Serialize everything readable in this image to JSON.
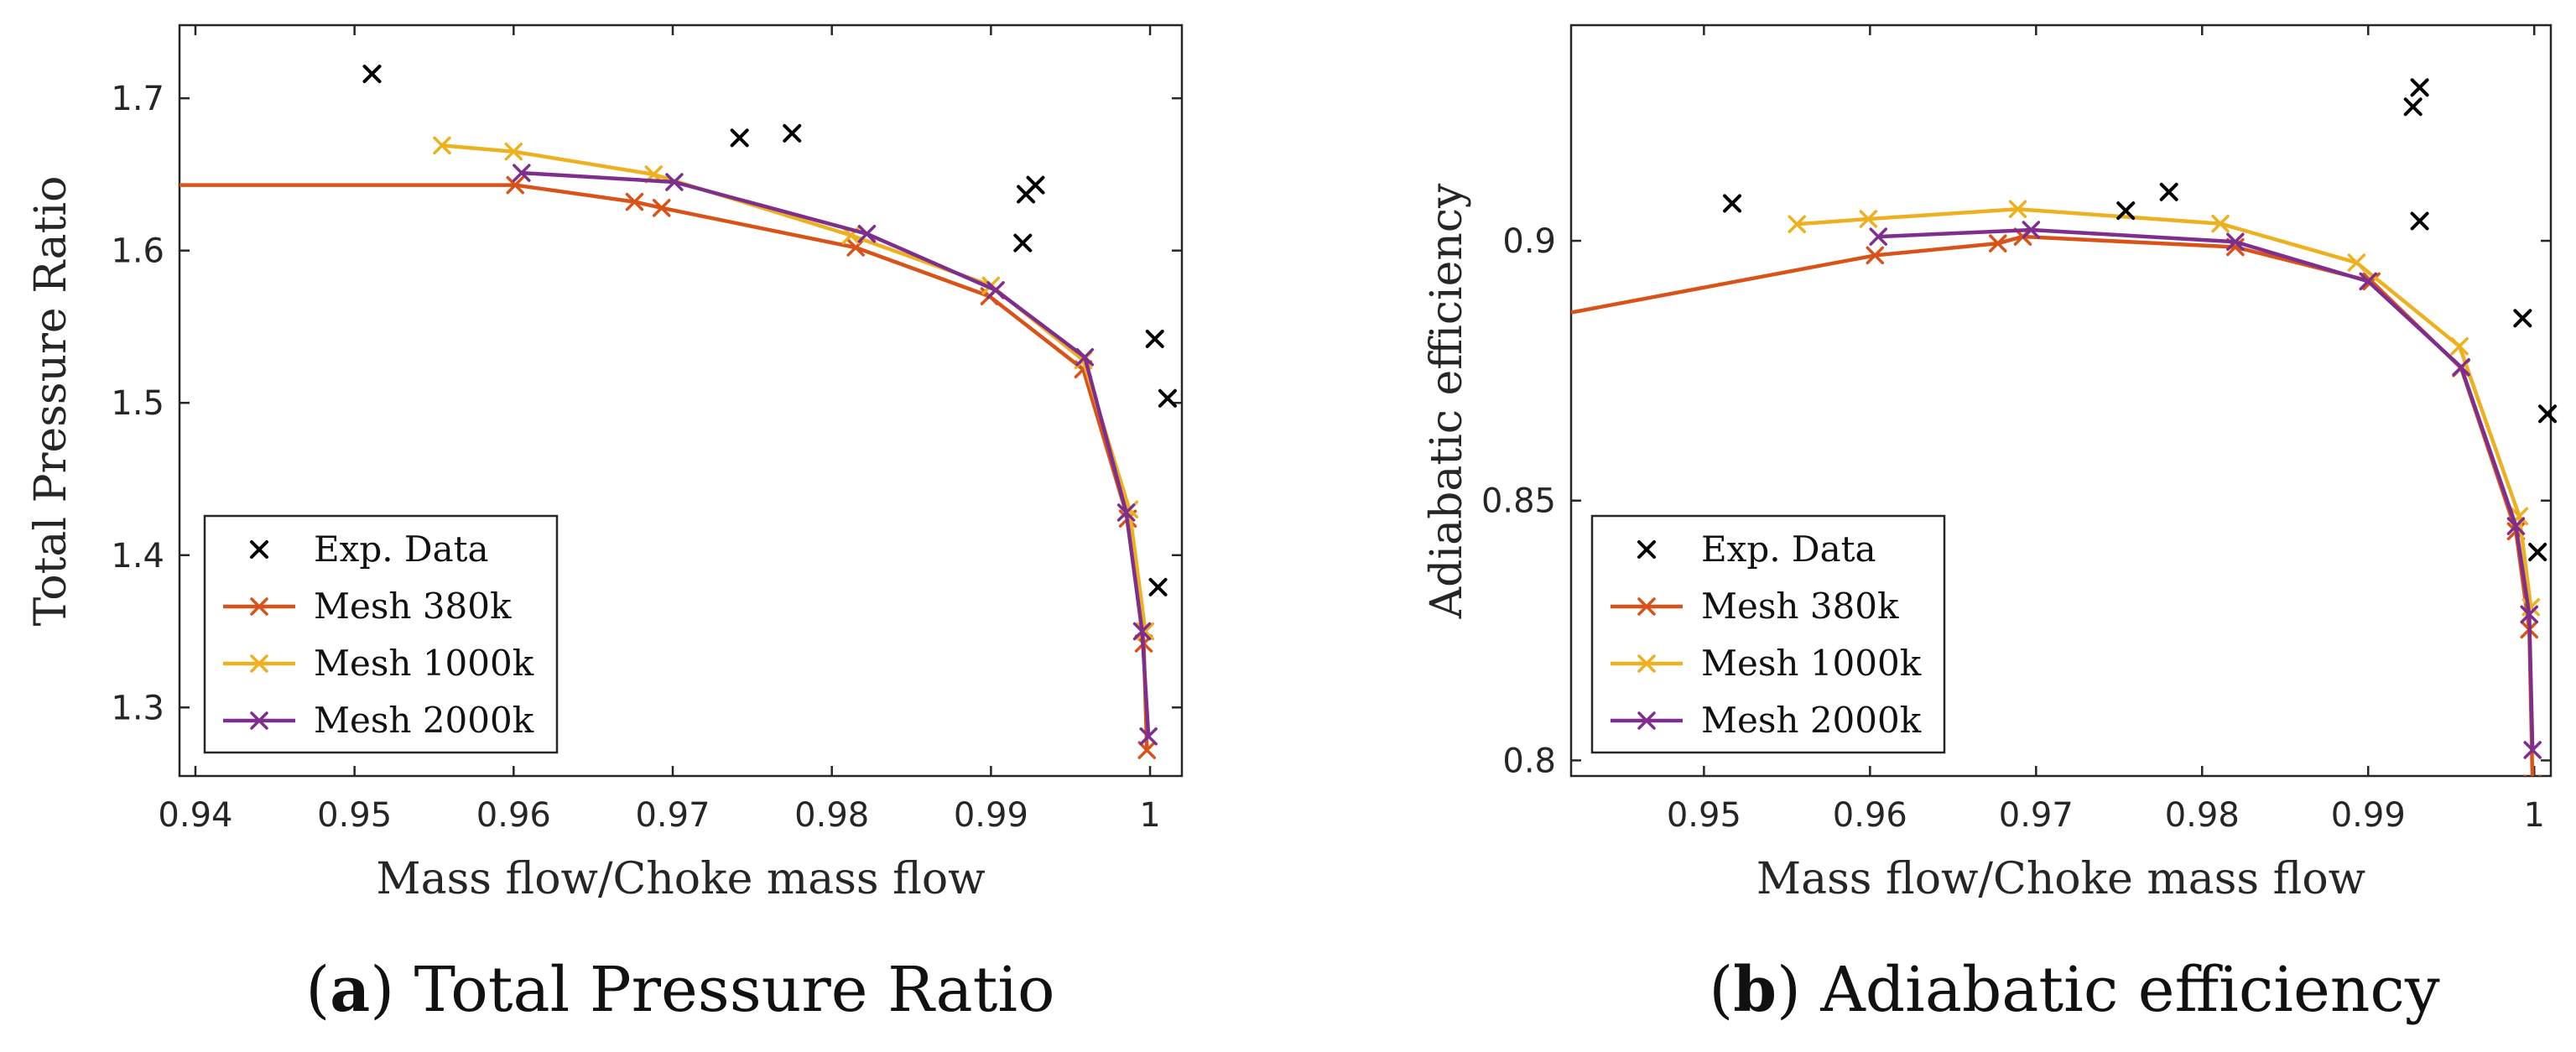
{
  "colors": {
    "exp": "#000000",
    "mesh380": "#D95319",
    "mesh1000": "#EDB120",
    "mesh2000": "#7E2F8E",
    "axis": "#262626",
    "legend_border": "#262626"
  },
  "chart_data": [
    {
      "type": "line",
      "caption_letter": "a",
      "caption_text": "Total Pressure Ratio",
      "xlabel": "Mass flow/Choke mass flow",
      "ylabel": "Total Pressure Ratio",
      "xlim": [
        0.939,
        1.002
      ],
      "ylim": [
        1.255,
        1.748
      ],
      "xticks": [
        0.94,
        0.95,
        0.96,
        0.97,
        0.98,
        0.99,
        1
      ],
      "xtick_labels": [
        "0.94",
        "0.95",
        "0.96",
        "0.97",
        "0.98",
        "0.99",
        "1"
      ],
      "yticks": [
        1.3,
        1.4,
        1.5,
        1.6,
        1.7
      ],
      "ytick_labels": [
        "1.3",
        "1.4",
        "1.5",
        "1.6",
        "1.7"
      ],
      "grid": false,
      "legend_position": "bottom-left",
      "exp": {
        "name": "Exp. Data",
        "points": [
          [
            0.9511,
            1.716
          ],
          [
            0.9742,
            1.674
          ],
          [
            0.9775,
            1.677
          ],
          [
            0.992,
            1.605
          ],
          [
            0.9922,
            1.637
          ],
          [
            0.9928,
            1.643
          ],
          [
            1.0003,
            1.542
          ],
          [
            1.0011,
            1.503
          ],
          [
            1.0005,
            1.379
          ]
        ]
      },
      "series": [
        {
          "name": "Mesh 380k",
          "color_key": "mesh380",
          "points": [
            [
              0.939,
              1.643
            ],
            [
              0.9601,
              1.643
            ],
            [
              0.9676,
              1.632
            ],
            [
              0.9693,
              1.628
            ],
            [
              0.9815,
              1.602
            ],
            [
              0.9899,
              1.57
            ],
            [
              0.9958,
              1.522
            ],
            [
              0.9986,
              1.424
            ],
            [
              0.9996,
              1.342
            ],
            [
              0.9998,
              1.272
            ]
          ],
          "first_marker": 1
        },
        {
          "name": "Mesh 1000k",
          "color_key": "mesh1000",
          "points": [
            [
              0.9555,
              1.669
            ],
            [
              0.96,
              1.665
            ],
            [
              0.9688,
              1.65
            ],
            [
              0.9812,
              1.61
            ],
            [
              0.99,
              1.577
            ],
            [
              0.9958,
              1.528
            ],
            [
              0.9987,
              1.43
            ],
            [
              0.9997,
              1.35
            ]
          ],
          "first_marker": 0
        },
        {
          "name": "Mesh 2000k",
          "color_key": "mesh2000",
          "points": [
            [
              0.9605,
              1.651
            ],
            [
              0.9701,
              1.645
            ],
            [
              0.9822,
              1.611
            ],
            [
              0.9903,
              1.574
            ],
            [
              0.9959,
              1.53
            ],
            [
              0.9985,
              1.428
            ],
            [
              0.9995,
              1.35
            ],
            [
              0.9999,
              1.281
            ]
          ],
          "first_marker": 0
        }
      ]
    },
    {
      "type": "line",
      "caption_letter": "b",
      "caption_text": "Adiabatic efficiency",
      "xlabel": "Mass flow/Choke mass flow",
      "ylabel": "Adiabatic efficiency",
      "xlim": [
        0.942,
        1.001
      ],
      "ylim": [
        0.797,
        0.9415
      ],
      "xticks": [
        0.95,
        0.96,
        0.97,
        0.98,
        0.99,
        1
      ],
      "xtick_labels": [
        "0.95",
        "0.96",
        "0.97",
        "0.98",
        "0.99",
        "1"
      ],
      "yticks": [
        0.8,
        0.85,
        0.9
      ],
      "ytick_labels": [
        "0.8",
        "0.85",
        "0.9"
      ],
      "grid": false,
      "legend_position": "bottom-left",
      "exp": {
        "name": "Exp. Data",
        "points": [
          [
            0.9517,
            0.9072
          ],
          [
            0.9754,
            0.9058
          ],
          [
            0.978,
            0.9094
          ],
          [
            0.9927,
            0.9258
          ],
          [
            0.9931,
            0.9295
          ],
          [
            0.9931,
            0.9038
          ],
          [
            0.9993,
            0.8851
          ],
          [
            1.0008,
            0.8667
          ],
          [
            1.0002,
            0.8401
          ]
        ]
      },
      "series": [
        {
          "name": "Mesh 380k",
          "color_key": "mesh380",
          "points": [
            [
              0.942,
              0.8862
            ],
            [
              0.9603,
              0.8972
            ],
            [
              0.9677,
              0.8995
            ],
            [
              0.9692,
              0.9008
            ],
            [
              0.982,
              0.8988
            ],
            [
              0.9902,
              0.8922
            ],
            [
              0.9956,
              0.8755
            ],
            [
              0.9989,
              0.8441
            ],
            [
              0.9997,
              0.8252
            ],
            [
              0.9999,
              0.7955
            ]
          ],
          "first_marker": 1
        },
        {
          "name": "Mesh 1000k",
          "color_key": "mesh1000",
          "points": [
            [
              0.9556,
              0.9032
            ],
            [
              0.9599,
              0.9042
            ],
            [
              0.9689,
              0.9061
            ],
            [
              0.9811,
              0.9033
            ],
            [
              0.9893,
              0.8958
            ],
            [
              0.9955,
              0.8797
            ],
            [
              0.9991,
              0.847
            ],
            [
              0.9998,
              0.8295
            ]
          ],
          "first_marker": 0
        },
        {
          "name": "Mesh 2000k",
          "color_key": "mesh2000",
          "points": [
            [
              0.9605,
              0.9008
            ],
            [
              0.9697,
              0.9021
            ],
            [
              0.982,
              0.8998
            ],
            [
              0.99,
              0.8922
            ],
            [
              0.9956,
              0.8757
            ],
            [
              0.9989,
              0.8451
            ],
            [
              0.9997,
              0.8281
            ],
            [
              0.9999,
              0.802
            ]
          ],
          "first_marker": 0
        }
      ]
    }
  ]
}
